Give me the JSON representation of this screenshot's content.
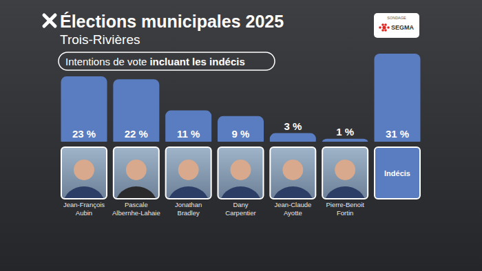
{
  "chart_data": {
    "type": "bar",
    "title": "Élections municipales 2025",
    "subtitle": "Trois-Rivières",
    "annotations": [
      "Intentions de vote",
      "incluant les indécis",
      "SONDAGE",
      "SEGMA"
    ],
    "categories": [
      "Jean-François Aubin",
      "Pascale Albernhe-Lahaie",
      "Jonathan Bradley",
      "Dany Carpentier",
      "Jean-Claude Ayotte",
      "Pierre-Benoit Fortin",
      "Indécis"
    ],
    "values": [
      23,
      22,
      11,
      9,
      3,
      1,
      31
    ],
    "value_labels": [
      "23 %",
      "22 %",
      "11 %",
      "9 %",
      "3 %",
      "1 %",
      "31 %"
    ],
    "color": "#5a7cc0",
    "ylim": [
      0,
      31
    ],
    "tick_labels": false,
    "grid": false,
    "data_labels": true
  }
}
